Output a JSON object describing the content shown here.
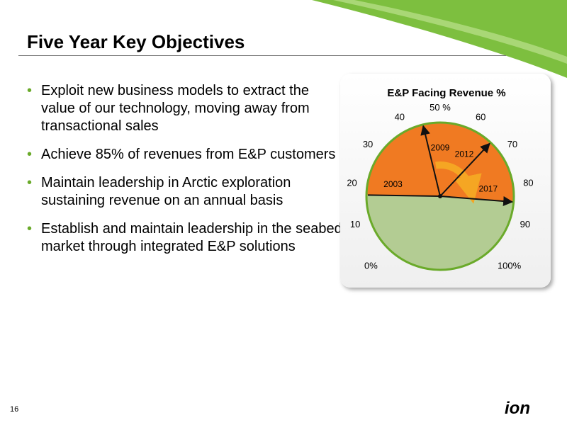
{
  "slide": {
    "title": "Five Year Key Objectives",
    "page_number": "16",
    "accent_color": "#6aaa2a",
    "bullet_marker": "•",
    "bullets": [
      "Exploit new business models to extract the value of our technology, moving away from transactional sales",
      "Achieve 85% of revenues from E&P customers",
      "Maintain leadership in Arctic exploration sustaining revenue on an annual basis",
      "Establish and maintain leadership in the seabed market through integrated E&P solutions"
    ]
  },
  "chart_data": {
    "type": "gauge",
    "title": "E&P Facing Revenue %",
    "scale_min": 0,
    "scale_max": 100,
    "scale_labels": [
      {
        "value": 0,
        "text": "0%"
      },
      {
        "value": 10,
        "text": "10"
      },
      {
        "value": 20,
        "text": "20"
      },
      {
        "value": 30,
        "text": "30"
      },
      {
        "value": 40,
        "text": "40"
      },
      {
        "value": 50,
        "text": "50 %"
      },
      {
        "value": 60,
        "text": "60"
      },
      {
        "value": 70,
        "text": "70"
      },
      {
        "value": 80,
        "text": "80"
      },
      {
        "value": 90,
        "text": "90"
      },
      {
        "value": 100,
        "text": "100%"
      }
    ],
    "pointers": [
      {
        "year": "2003",
        "value": 17
      },
      {
        "year": "2009",
        "value": 45
      },
      {
        "year": "2012",
        "value": 66
      },
      {
        "year": "2017",
        "value": 85
      }
    ],
    "filled_value": 85,
    "colors": {
      "filled": "#f07a22",
      "remaining": "#b3cc93",
      "rim": "#6aaa2a",
      "arrow": "#f5a623"
    }
  },
  "logo": {
    "text": "ion",
    "color": "#000000"
  }
}
